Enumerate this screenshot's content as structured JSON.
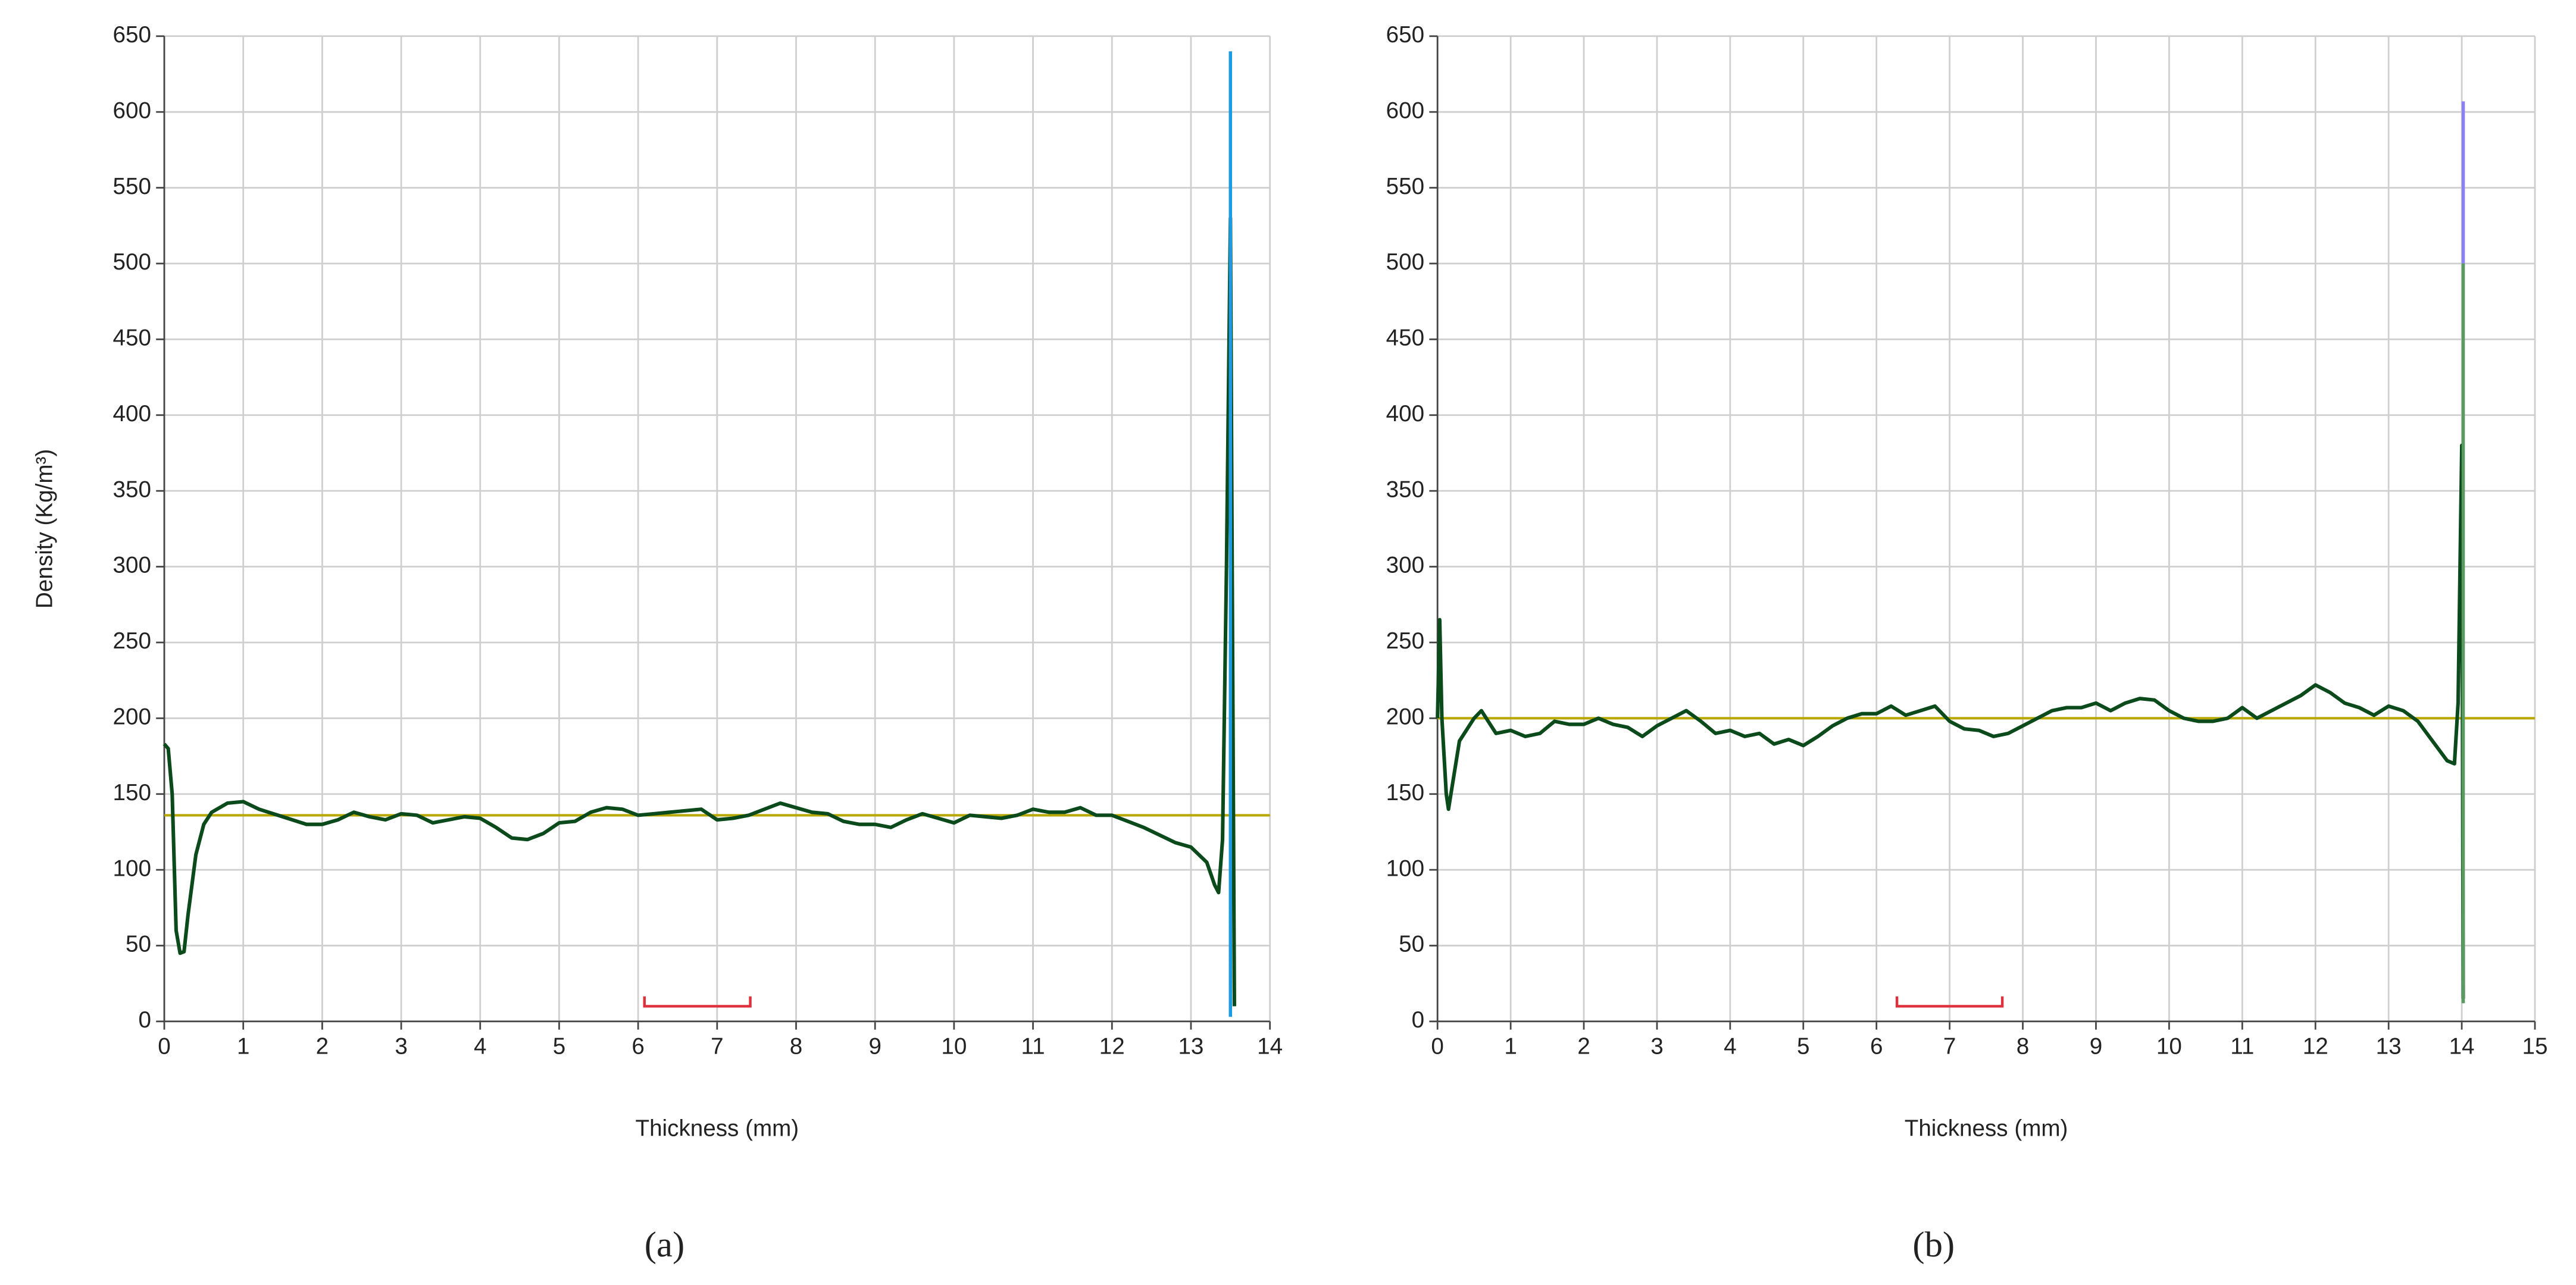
{
  "chart_data": [
    {
      "type": "line",
      "caption": "(a)",
      "xlabel": "Thickness (mm)",
      "ylabel": "Density (Kg/m³)",
      "xlim": [
        0,
        14
      ],
      "xticks": [
        0,
        1,
        2,
        3,
        4,
        5,
        6,
        7,
        8,
        9,
        10,
        11,
        12,
        13,
        14
      ],
      "ylim": [
        0,
        650
      ],
      "yticks": [
        0,
        50,
        100,
        150,
        200,
        250,
        300,
        350,
        400,
        450,
        500,
        550,
        600,
        650
      ],
      "grid": true,
      "series": [
        {
          "color": "#0b4a1a",
          "x": [
            0,
            0.05,
            0.1,
            0.15,
            0.2,
            0.25,
            0.3,
            0.4,
            0.5,
            0.6,
            0.8,
            1.0,
            1.2,
            1.5,
            1.8,
            2.0,
            2.2,
            2.4,
            2.6,
            2.8,
            3.0,
            3.2,
            3.4,
            3.6,
            3.8,
            4.0,
            4.2,
            4.4,
            4.6,
            4.8,
            5.0,
            5.2,
            5.4,
            5.6,
            5.8,
            6.0,
            6.2,
            6.4,
            6.6,
            6.8,
            7.0,
            7.2,
            7.4,
            7.6,
            7.8,
            8.0,
            8.2,
            8.4,
            8.6,
            8.8,
            9.0,
            9.2,
            9.4,
            9.6,
            9.8,
            10.0,
            10.2,
            10.4,
            10.6,
            10.8,
            11.0,
            11.2,
            11.4,
            11.6,
            11.8,
            12.0,
            12.2,
            12.4,
            12.6,
            12.8,
            13.0,
            13.2,
            13.3,
            13.35,
            13.4,
            13.45,
            13.5,
            13.55
          ],
          "values": [
            183,
            180,
            150,
            60,
            45,
            46,
            70,
            110,
            130,
            138,
            144,
            145,
            140,
            135,
            130,
            130,
            133,
            138,
            135,
            133,
            137,
            136,
            131,
            133,
            135,
            134,
            128,
            121,
            120,
            124,
            131,
            132,
            138,
            141,
            140,
            136,
            137,
            138,
            139,
            140,
            133,
            134,
            136,
            140,
            144,
            141,
            138,
            137,
            132,
            130,
            130,
            128,
            133,
            137,
            134,
            131,
            136,
            135,
            134,
            136,
            140,
            138,
            138,
            141,
            136,
            136,
            132,
            128,
            123,
            118,
            115,
            105,
            90,
            85,
            120,
            300,
            530,
            10
          ]
        }
      ],
      "mean": {
        "value": 136,
        "color": "#b8a800"
      },
      "vertical_lines": [
        {
          "x": 13.5,
          "y": [
            3,
            640
          ],
          "color": "#1e9be0"
        }
      ],
      "bracket": {
        "x": [
          6.08,
          7.42
        ],
        "y": 10,
        "color": "#e0303c"
      }
    },
    {
      "type": "line",
      "caption": "(b)",
      "xlabel": "Thickness (mm)",
      "xlim": [
        0,
        15
      ],
      "xticks": [
        0,
        1,
        2,
        3,
        4,
        5,
        6,
        7,
        8,
        9,
        10,
        11,
        12,
        13,
        14,
        15
      ],
      "ylim": [
        0,
        650
      ],
      "yticks": [
        0,
        50,
        100,
        150,
        200,
        250,
        300,
        350,
        400,
        450,
        500,
        550,
        600,
        650
      ],
      "grid": true,
      "series": [
        {
          "color": "#0b4a1a",
          "x": [
            0,
            0.03,
            0.06,
            0.12,
            0.15,
            0.2,
            0.3,
            0.5,
            0.6,
            0.8,
            1.0,
            1.2,
            1.4,
            1.6,
            1.8,
            2.0,
            2.2,
            2.4,
            2.6,
            2.8,
            3.0,
            3.2,
            3.4,
            3.6,
            3.8,
            4.0,
            4.2,
            4.4,
            4.6,
            4.8,
            5.0,
            5.2,
            5.4,
            5.6,
            5.8,
            6.0,
            6.2,
            6.4,
            6.6,
            6.8,
            7.0,
            7.2,
            7.4,
            7.6,
            7.8,
            8.0,
            8.2,
            8.4,
            8.6,
            8.8,
            9.0,
            9.2,
            9.4,
            9.6,
            9.8,
            10.0,
            10.2,
            10.4,
            10.6,
            10.8,
            11.0,
            11.2,
            11.4,
            11.6,
            11.8,
            12.0,
            12.2,
            12.4,
            12.6,
            12.8,
            13.0,
            13.2,
            13.4,
            13.6,
            13.8,
            13.9,
            13.95,
            14.0,
            14.02
          ],
          "values": [
            200,
            265,
            200,
            150,
            140,
            155,
            185,
            200,
            205,
            190,
            192,
            188,
            190,
            198,
            196,
            196,
            200,
            196,
            194,
            188,
            195,
            200,
            205,
            198,
            190,
            192,
            188,
            190,
            183,
            186,
            182,
            188,
            195,
            200,
            203,
            203,
            208,
            202,
            205,
            208,
            198,
            193,
            192,
            188,
            190,
            195,
            200,
            205,
            207,
            207,
            210,
            205,
            210,
            213,
            212,
            205,
            200,
            198,
            198,
            200,
            207,
            200,
            205,
            210,
            215,
            222,
            217,
            210,
            207,
            202,
            208,
            205,
            198,
            185,
            172,
            170,
            210,
            380,
            15
          ]
        }
      ],
      "mean": {
        "value": 200,
        "color": "#b8a800"
      },
      "vertical_lines": [
        {
          "x": 14.02,
          "y": [
            12,
            500
          ],
          "color": "#5a9a62"
        },
        {
          "x": 14.02,
          "y": [
            500,
            607
          ],
          "color": "#8a80f0"
        }
      ],
      "bracket": {
        "x": [
          6.28,
          7.72
        ],
        "y": 10,
        "color": "#e0303c"
      }
    }
  ]
}
